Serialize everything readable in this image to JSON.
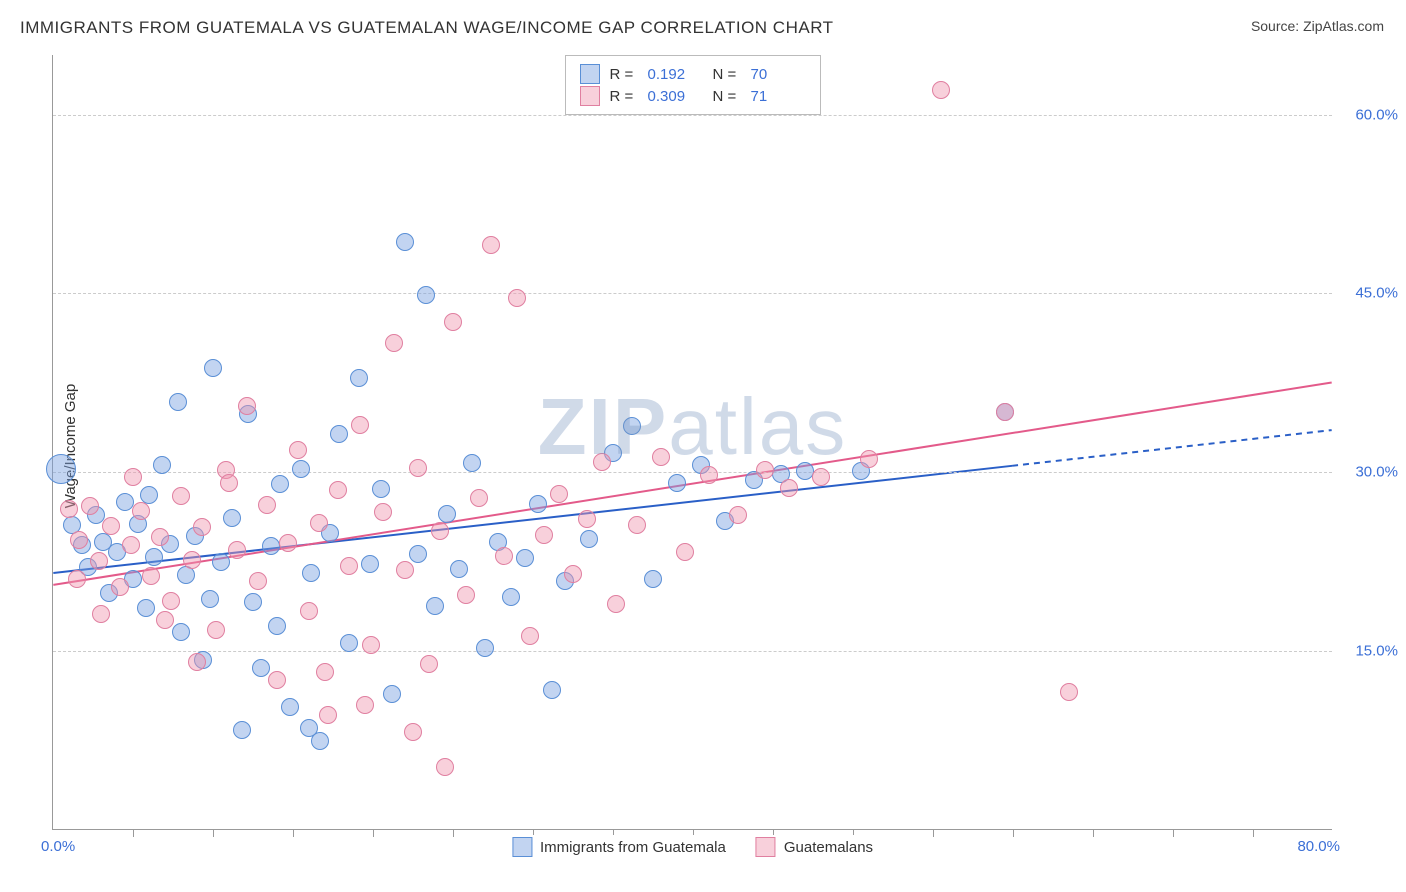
{
  "title": "IMMIGRANTS FROM GUATEMALA VS GUATEMALAN WAGE/INCOME GAP CORRELATION CHART",
  "source": "Source: ZipAtlas.com",
  "y_axis_label": "Wage/Income Gap",
  "watermark": {
    "bold": "ZIP",
    "light": "atlas"
  },
  "chart": {
    "type": "scatter",
    "background_color": "#ffffff",
    "grid_color": "#cccccc",
    "axis_color": "#999999",
    "x_axis": {
      "min": 0,
      "max": 80,
      "ticks_minor_step": 5,
      "label_left": "0.0%",
      "label_right": "80.0%"
    },
    "y_axis": {
      "min": 0,
      "max": 65,
      "tick_values": [
        15,
        30,
        45,
        60
      ],
      "tick_labels": [
        "15.0%",
        "30.0%",
        "45.0%",
        "60.0%"
      ]
    },
    "marker_radius": 9,
    "marker_border_width": 1.5,
    "series": [
      {
        "name": "Immigrants from Guatemala",
        "fill": "rgba(120,160,225,0.45)",
        "stroke": "#5a8fd6",
        "trend": {
          "color": "#2a5fc7",
          "width": 2,
          "y_at_xmin": 21.5,
          "y_at_xmax": 33.5,
          "solid_until_x": 60
        },
        "R": "0.192",
        "N": "70",
        "points": [
          {
            "x": 0.5,
            "y": 30.2,
            "r": 15
          },
          {
            "x": 1.2,
            "y": 25.5
          },
          {
            "x": 1.8,
            "y": 23.8
          },
          {
            "x": 2.2,
            "y": 22.0
          },
          {
            "x": 2.7,
            "y": 26.3
          },
          {
            "x": 3.1,
            "y": 24.1
          },
          {
            "x": 3.5,
            "y": 19.8
          },
          {
            "x": 4.0,
            "y": 23.2
          },
          {
            "x": 4.5,
            "y": 27.4
          },
          {
            "x": 5.0,
            "y": 21.0
          },
          {
            "x": 5.3,
            "y": 25.6
          },
          {
            "x": 5.8,
            "y": 18.5
          },
          {
            "x": 6.3,
            "y": 22.8
          },
          {
            "x": 6.8,
            "y": 30.5
          },
          {
            "x": 7.3,
            "y": 23.9
          },
          {
            "x": 7.8,
            "y": 35.8
          },
          {
            "x": 8.3,
            "y": 21.3
          },
          {
            "x": 8.9,
            "y": 24.6
          },
          {
            "x": 9.4,
            "y": 14.2
          },
          {
            "x": 10.0,
            "y": 38.7
          },
          {
            "x": 10.5,
            "y": 22.4
          },
          {
            "x": 11.2,
            "y": 26.1
          },
          {
            "x": 11.8,
            "y": 8.3
          },
          {
            "x": 12.5,
            "y": 19.0
          },
          {
            "x": 13.0,
            "y": 13.5
          },
          {
            "x": 13.6,
            "y": 23.7
          },
          {
            "x": 14.2,
            "y": 28.9
          },
          {
            "x": 14.8,
            "y": 10.2
          },
          {
            "x": 15.5,
            "y": 30.2
          },
          {
            "x": 16.1,
            "y": 21.5
          },
          {
            "x": 16.7,
            "y": 7.4
          },
          {
            "x": 17.3,
            "y": 24.8
          },
          {
            "x": 17.9,
            "y": 33.1
          },
          {
            "x": 18.5,
            "y": 15.6
          },
          {
            "x": 19.1,
            "y": 37.8
          },
          {
            "x": 19.8,
            "y": 22.2
          },
          {
            "x": 20.5,
            "y": 28.5
          },
          {
            "x": 21.2,
            "y": 11.3
          },
          {
            "x": 22.0,
            "y": 49.2
          },
          {
            "x": 22.8,
            "y": 23.1
          },
          {
            "x": 23.3,
            "y": 44.8
          },
          {
            "x": 23.9,
            "y": 18.7
          },
          {
            "x": 24.6,
            "y": 26.4
          },
          {
            "x": 25.4,
            "y": 21.8
          },
          {
            "x": 26.2,
            "y": 30.7
          },
          {
            "x": 27.0,
            "y": 15.2
          },
          {
            "x": 27.8,
            "y": 24.1
          },
          {
            "x": 28.6,
            "y": 19.5
          },
          {
            "x": 29.5,
            "y": 22.7
          },
          {
            "x": 30.3,
            "y": 27.3
          },
          {
            "x": 31.2,
            "y": 11.7
          },
          {
            "x": 32.0,
            "y": 20.8
          },
          {
            "x": 33.5,
            "y": 24.3
          },
          {
            "x": 35.0,
            "y": 31.5
          },
          {
            "x": 36.2,
            "y": 33.8
          },
          {
            "x": 37.5,
            "y": 21.0
          },
          {
            "x": 39.0,
            "y": 29.0
          },
          {
            "x": 40.5,
            "y": 30.5
          },
          {
            "x": 42.0,
            "y": 25.8
          },
          {
            "x": 43.8,
            "y": 29.3
          },
          {
            "x": 45.5,
            "y": 29.8
          },
          {
            "x": 47.0,
            "y": 30.0
          },
          {
            "x": 50.5,
            "y": 30.0
          },
          {
            "x": 59.5,
            "y": 35.0
          },
          {
            "x": 12.2,
            "y": 34.8
          },
          {
            "x": 14.0,
            "y": 17.0
          },
          {
            "x": 16.0,
            "y": 8.5
          },
          {
            "x": 9.8,
            "y": 19.3
          },
          {
            "x": 8.0,
            "y": 16.5
          },
          {
            "x": 6.0,
            "y": 28.0
          }
        ]
      },
      {
        "name": "Guatemalans",
        "fill": "rgba(240,150,175,0.45)",
        "stroke": "#e07fa0",
        "trend": {
          "color": "#e35a8a",
          "width": 2,
          "y_at_xmin": 20.5,
          "y_at_xmax": 37.5,
          "solid_until_x": 80
        },
        "R": "0.309",
        "N": "71",
        "points": [
          {
            "x": 1.0,
            "y": 26.8
          },
          {
            "x": 1.6,
            "y": 24.2
          },
          {
            "x": 2.3,
            "y": 27.1
          },
          {
            "x": 2.9,
            "y": 22.5
          },
          {
            "x": 3.6,
            "y": 25.4
          },
          {
            "x": 4.2,
            "y": 20.3
          },
          {
            "x": 4.9,
            "y": 23.8
          },
          {
            "x": 5.5,
            "y": 26.7
          },
          {
            "x": 6.1,
            "y": 21.2
          },
          {
            "x": 6.7,
            "y": 24.5
          },
          {
            "x": 7.4,
            "y": 19.1
          },
          {
            "x": 8.0,
            "y": 27.9
          },
          {
            "x": 8.7,
            "y": 22.6
          },
          {
            "x": 9.3,
            "y": 25.3
          },
          {
            "x": 10.2,
            "y": 16.7
          },
          {
            "x": 10.8,
            "y": 30.1
          },
          {
            "x": 11.5,
            "y": 23.4
          },
          {
            "x": 12.1,
            "y": 35.5
          },
          {
            "x": 12.8,
            "y": 20.8
          },
          {
            "x": 13.4,
            "y": 27.2
          },
          {
            "x": 14.0,
            "y": 12.5
          },
          {
            "x": 14.7,
            "y": 24.0
          },
          {
            "x": 15.3,
            "y": 31.8
          },
          {
            "x": 16.0,
            "y": 18.3
          },
          {
            "x": 16.6,
            "y": 25.7
          },
          {
            "x": 17.2,
            "y": 9.6
          },
          {
            "x": 17.8,
            "y": 28.4
          },
          {
            "x": 18.5,
            "y": 22.1
          },
          {
            "x": 19.2,
            "y": 33.9
          },
          {
            "x": 19.9,
            "y": 15.4
          },
          {
            "x": 20.6,
            "y": 26.6
          },
          {
            "x": 21.3,
            "y": 40.8
          },
          {
            "x": 22.0,
            "y": 21.7
          },
          {
            "x": 22.8,
            "y": 30.3
          },
          {
            "x": 23.5,
            "y": 13.8
          },
          {
            "x": 24.2,
            "y": 25.0
          },
          {
            "x": 25.0,
            "y": 42.5
          },
          {
            "x": 25.8,
            "y": 19.6
          },
          {
            "x": 26.6,
            "y": 27.8
          },
          {
            "x": 27.4,
            "y": 49.0
          },
          {
            "x": 28.2,
            "y": 22.9
          },
          {
            "x": 29.0,
            "y": 44.5
          },
          {
            "x": 29.8,
            "y": 16.2
          },
          {
            "x": 30.7,
            "y": 24.7
          },
          {
            "x": 31.6,
            "y": 28.1
          },
          {
            "x": 32.5,
            "y": 21.4
          },
          {
            "x": 33.4,
            "y": 26.0
          },
          {
            "x": 34.3,
            "y": 30.8
          },
          {
            "x": 35.2,
            "y": 18.9
          },
          {
            "x": 36.5,
            "y": 25.5
          },
          {
            "x": 38.0,
            "y": 31.2
          },
          {
            "x": 39.5,
            "y": 23.2
          },
          {
            "x": 41.0,
            "y": 29.7
          },
          {
            "x": 42.8,
            "y": 26.3
          },
          {
            "x": 44.5,
            "y": 30.1
          },
          {
            "x": 46.0,
            "y": 28.6
          },
          {
            "x": 48.0,
            "y": 29.5
          },
          {
            "x": 51.0,
            "y": 31.0
          },
          {
            "x": 55.5,
            "y": 62.0
          },
          {
            "x": 59.5,
            "y": 35.0
          },
          {
            "x": 63.5,
            "y": 11.5
          },
          {
            "x": 24.5,
            "y": 5.2
          },
          {
            "x": 22.5,
            "y": 8.1
          },
          {
            "x": 19.5,
            "y": 10.4
          },
          {
            "x": 17.0,
            "y": 13.2
          },
          {
            "x": 11.0,
            "y": 29.0
          },
          {
            "x": 9.0,
            "y": 14.0
          },
          {
            "x": 7.0,
            "y": 17.5
          },
          {
            "x": 5.0,
            "y": 29.5
          },
          {
            "x": 3.0,
            "y": 18.0
          },
          {
            "x": 1.5,
            "y": 21.0
          }
        ]
      }
    ]
  },
  "legend_top": {
    "swatch_blue": {
      "fill": "rgba(120,160,225,0.45)",
      "stroke": "#5a8fd6"
    },
    "swatch_pink": {
      "fill": "rgba(240,150,175,0.45)",
      "stroke": "#e07fa0"
    },
    "rows": [
      {
        "R_label": "R =",
        "R_val": "0.192",
        "N_label": "N =",
        "N_val": "70"
      },
      {
        "R_label": "R =",
        "R_val": "0.309",
        "N_label": "N =",
        "71": "71",
        "N_val": "71"
      }
    ]
  },
  "legend_bottom": {
    "items": [
      {
        "swatch": {
          "fill": "rgba(120,160,225,0.45)",
          "stroke": "#5a8fd6"
        },
        "label": "Immigrants from Guatemala"
      },
      {
        "swatch": {
          "fill": "rgba(240,150,175,0.45)",
          "stroke": "#e07fa0"
        },
        "label": "Guatemalans"
      }
    ]
  }
}
